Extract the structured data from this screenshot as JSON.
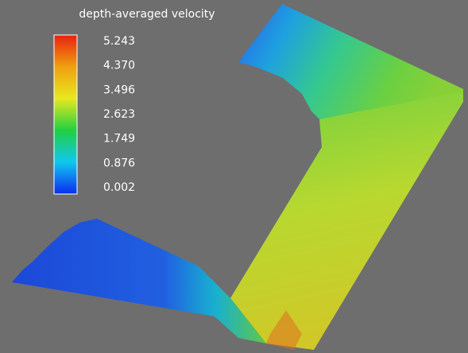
{
  "chart_data": {
    "type": "colorbar",
    "title": "depth-averaged velocity",
    "clim": [
      0.002,
      5.243
    ],
    "cticks": [
      5.243,
      {
        "value": 4.37,
        "label": "4.370"
      },
      3.496,
      2.623,
      1.749,
      0.876,
      0.002
    ],
    "colors": [
      "#0a2cf0",
      "#10c8f0",
      "#20d040",
      "#e8e820",
      "#f0a010",
      "#e82010"
    ]
  }
}
